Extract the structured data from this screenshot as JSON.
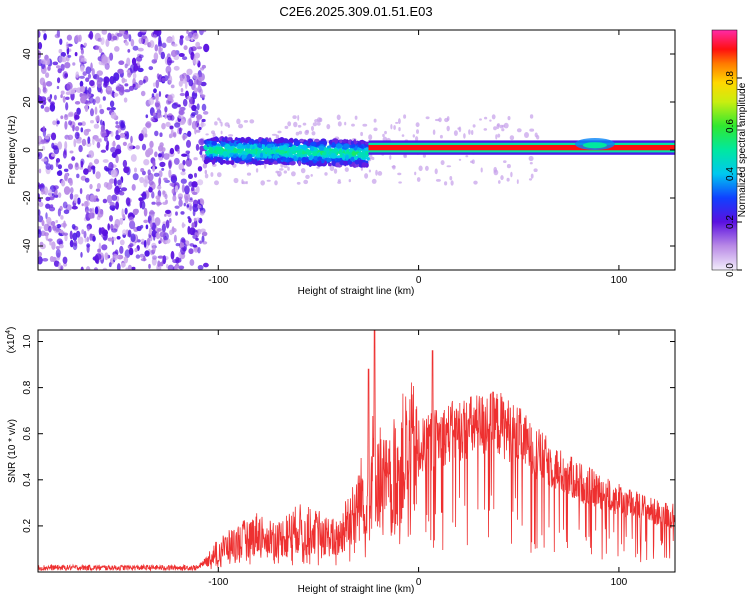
{
  "title": "C2E6.2025.309.01.51.E03",
  "chart_data": [
    {
      "type": "heatmap",
      "name": "spectrogram",
      "xlabel": "Height of straight line (km)",
      "ylabel": "Frequency (Hz)",
      "xlim": [
        -190,
        128
      ],
      "ylim": [
        -50,
        50
      ],
      "xticks": [
        -100,
        0,
        100
      ],
      "xtick_labels": [
        "-100",
        "0",
        "100"
      ],
      "yticks": [
        -40,
        -20,
        0,
        20,
        40
      ],
      "ytick_labels": [
        "-40",
        "-20",
        "0",
        "20",
        "40"
      ],
      "colorbar": {
        "label": "Normalized spectral amplitude",
        "range": [
          0,
          1
        ],
        "ticks": [
          0,
          0.2,
          0.4,
          0.6,
          0.8
        ],
        "tick_labels": [
          "0.0",
          "0.2",
          "0.4",
          "0.6",
          "0.8"
        ]
      },
      "regions": [
        {
          "x_range": [
            -190,
            -106
          ],
          "f_range": [
            -50,
            50
          ],
          "description_value": 0.15
        },
        {
          "x_range": [
            -106,
            -25
          ],
          "f_center": 0,
          "f_halfwidth": 5,
          "peak": 0.45
        },
        {
          "x_range": [
            -25,
            128
          ],
          "f_center": 1,
          "f_halfwidth": 2,
          "peak": 0.95
        }
      ]
    },
    {
      "type": "line",
      "name": "snr",
      "xlabel": "Height of straight line (km)",
      "ylabel": "SNR (10 * v/v)",
      "scale_label": "(x10",
      "scale_exp": "4",
      "scale_close": ")",
      "xlim": [
        -190,
        128
      ],
      "ylim": [
        0,
        1.05
      ],
      "xticks": [
        -100,
        0,
        100
      ],
      "xtick_labels": [
        "-100",
        "0",
        "100"
      ],
      "yticks": [
        0.2,
        0.4,
        0.6,
        0.8,
        1.0
      ],
      "ytick_labels": [
        "0.2",
        "0.4",
        "0.6",
        "0.8",
        "1.0"
      ],
      "color": "#ee3030",
      "envelope": {
        "x": [
          -190,
          -110,
          -100,
          -90,
          -80,
          -70,
          -60,
          -50,
          -40,
          -35,
          -30,
          -25,
          -22,
          -20,
          -15,
          -10,
          -5,
          0,
          5,
          10,
          20,
          30,
          40,
          50,
          60,
          70,
          80,
          90,
          100,
          110,
          120,
          128
        ],
        "y": [
          0.02,
          0.02,
          0.1,
          0.14,
          0.18,
          0.15,
          0.2,
          0.18,
          0.15,
          0.25,
          0.32,
          0.4,
          0.5,
          0.45,
          0.38,
          0.5,
          0.55,
          0.55,
          0.57,
          0.6,
          0.63,
          0.65,
          0.66,
          0.6,
          0.52,
          0.45,
          0.4,
          0.36,
          0.32,
          0.29,
          0.26,
          0.25
        ]
      },
      "peaks": [
        {
          "x": -22,
          "y": 1.05
        },
        {
          "x": 7,
          "y": 0.96
        },
        {
          "x": -25,
          "y": 0.88
        }
      ]
    }
  ]
}
